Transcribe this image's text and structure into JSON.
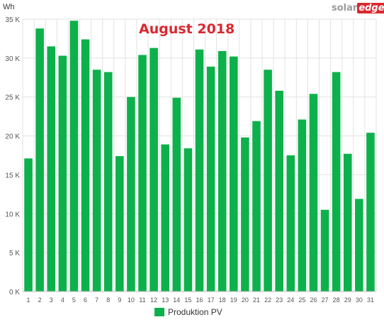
{
  "header": {
    "title": "August 2018",
    "unit": "Wh",
    "brand_part1": "solar",
    "brand_part2": "edge"
  },
  "legend": {
    "label": "Produktion PV"
  },
  "colors": {
    "bar": "#0db14b",
    "title": "#d9282f",
    "grid": "#e2e2e2",
    "axis_text": "#555555"
  },
  "chart_data": {
    "type": "bar",
    "title": "August 2018",
    "ylabel": "Wh",
    "xlabel": "",
    "categories": [
      "1",
      "2",
      "3",
      "4",
      "5",
      "6",
      "7",
      "8",
      "9",
      "10",
      "11",
      "12",
      "13",
      "14",
      "15",
      "16",
      "17",
      "18",
      "19",
      "20",
      "21",
      "22",
      "23",
      "24",
      "25",
      "26",
      "27",
      "28",
      "29",
      "30",
      "31"
    ],
    "series": [
      {
        "name": "Produktion PV",
        "values": [
          17100,
          33800,
          31500,
          30300,
          34800,
          32400,
          28500,
          28200,
          17400,
          25000,
          30400,
          31300,
          18900,
          24900,
          18400,
          31100,
          28900,
          30900,
          30200,
          19800,
          21900,
          28500,
          25800,
          17500,
          22100,
          25400,
          10500,
          28200,
          17700,
          11900,
          20400
        ]
      }
    ],
    "ylim": [
      0,
      35000
    ],
    "yticks": [
      0,
      5000,
      10000,
      15000,
      20000,
      25000,
      30000,
      35000
    ],
    "ytick_labels": [
      "0 K",
      "5 K",
      "10 K",
      "15 K",
      "20 K",
      "25 K",
      "30 K",
      "35 K"
    ],
    "grid": true,
    "legend_position": "bottom-center"
  }
}
